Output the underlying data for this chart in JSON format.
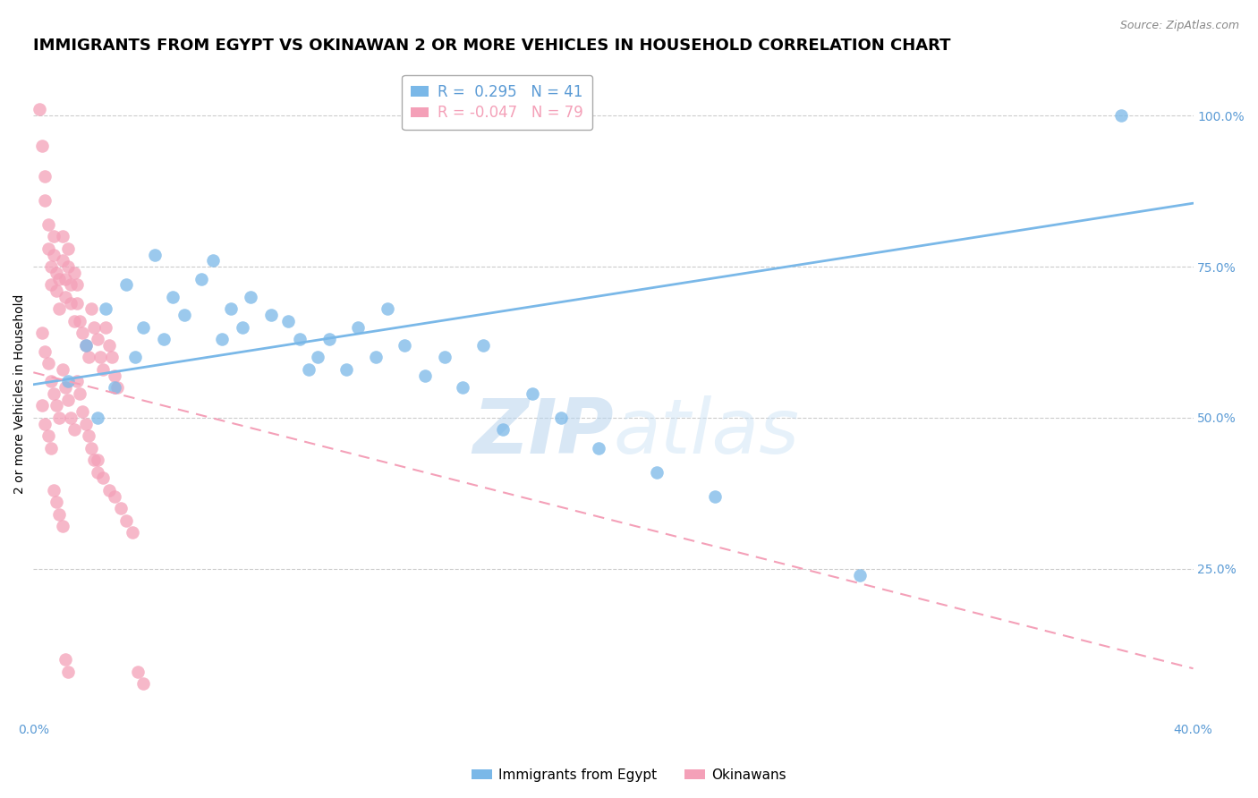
{
  "title": "IMMIGRANTS FROM EGYPT VS OKINAWAN 2 OR MORE VEHICLES IN HOUSEHOLD CORRELATION CHART",
  "source": "Source: ZipAtlas.com",
  "ylabel": "2 or more Vehicles in Household",
  "x_min": 0.0,
  "x_max": 0.4,
  "y_min": 0.0,
  "y_max": 1.08,
  "y_ticks": [
    0.25,
    0.5,
    0.75,
    1.0
  ],
  "y_tick_labels": [
    "25.0%",
    "50.0%",
    "75.0%",
    "100.0%"
  ],
  "legend_label1": "Immigrants from Egypt",
  "legend_label2": "Okinawans",
  "color_blue": "#7ab8e8",
  "color_pink": "#f4a0b8",
  "watermark_zip": "ZIP",
  "watermark_atlas": "atlas",
  "blue_scatter_x": [
    0.012,
    0.018,
    0.022,
    0.025,
    0.028,
    0.032,
    0.035,
    0.038,
    0.042,
    0.045,
    0.048,
    0.052,
    0.058,
    0.062,
    0.065,
    0.068,
    0.072,
    0.075,
    0.082,
    0.088,
    0.092,
    0.095,
    0.098,
    0.102,
    0.108,
    0.112,
    0.118,
    0.122,
    0.128,
    0.135,
    0.142,
    0.148,
    0.155,
    0.162,
    0.172,
    0.182,
    0.195,
    0.215,
    0.235,
    0.285,
    0.375
  ],
  "blue_scatter_y": [
    0.56,
    0.62,
    0.5,
    0.68,
    0.55,
    0.72,
    0.6,
    0.65,
    0.77,
    0.63,
    0.7,
    0.67,
    0.73,
    0.76,
    0.63,
    0.68,
    0.65,
    0.7,
    0.67,
    0.66,
    0.63,
    0.58,
    0.6,
    0.63,
    0.58,
    0.65,
    0.6,
    0.68,
    0.62,
    0.57,
    0.6,
    0.55,
    0.62,
    0.48,
    0.54,
    0.5,
    0.45,
    0.41,
    0.37,
    0.24,
    1.0
  ],
  "pink_scatter_x": [
    0.002,
    0.003,
    0.004,
    0.004,
    0.005,
    0.005,
    0.006,
    0.006,
    0.007,
    0.007,
    0.008,
    0.008,
    0.009,
    0.009,
    0.01,
    0.01,
    0.011,
    0.011,
    0.012,
    0.012,
    0.013,
    0.013,
    0.014,
    0.014,
    0.015,
    0.015,
    0.016,
    0.017,
    0.018,
    0.019,
    0.02,
    0.021,
    0.022,
    0.023,
    0.024,
    0.025,
    0.026,
    0.027,
    0.028,
    0.029,
    0.003,
    0.004,
    0.005,
    0.006,
    0.007,
    0.008,
    0.009,
    0.01,
    0.011,
    0.012,
    0.013,
    0.014,
    0.015,
    0.016,
    0.017,
    0.018,
    0.019,
    0.02,
    0.021,
    0.022,
    0.003,
    0.004,
    0.005,
    0.006,
    0.007,
    0.008,
    0.009,
    0.01,
    0.011,
    0.012,
    0.022,
    0.024,
    0.026,
    0.028,
    0.03,
    0.032,
    0.034,
    0.036,
    0.038
  ],
  "pink_scatter_y": [
    1.01,
    0.95,
    0.9,
    0.86,
    0.82,
    0.78,
    0.75,
    0.72,
    0.8,
    0.77,
    0.74,
    0.71,
    0.68,
    0.73,
    0.8,
    0.76,
    0.73,
    0.7,
    0.78,
    0.75,
    0.72,
    0.69,
    0.66,
    0.74,
    0.72,
    0.69,
    0.66,
    0.64,
    0.62,
    0.6,
    0.68,
    0.65,
    0.63,
    0.6,
    0.58,
    0.65,
    0.62,
    0.6,
    0.57,
    0.55,
    0.64,
    0.61,
    0.59,
    0.56,
    0.54,
    0.52,
    0.5,
    0.58,
    0.55,
    0.53,
    0.5,
    0.48,
    0.56,
    0.54,
    0.51,
    0.49,
    0.47,
    0.45,
    0.43,
    0.41,
    0.52,
    0.49,
    0.47,
    0.45,
    0.38,
    0.36,
    0.34,
    0.32,
    0.1,
    0.08,
    0.43,
    0.4,
    0.38,
    0.37,
    0.35,
    0.33,
    0.31,
    0.08,
    0.06
  ],
  "blue_line_x": [
    0.0,
    0.4
  ],
  "blue_line_y": [
    0.555,
    0.855
  ],
  "pink_line_x": [
    0.0,
    0.4
  ],
  "pink_line_y": [
    0.575,
    0.085
  ],
  "grid_color": "#cccccc",
  "title_fontsize": 13,
  "axis_label_fontsize": 10,
  "tick_fontsize": 10,
  "tick_color": "#5b9bd5",
  "legend_r1": "R =  0.295",
  "legend_n1": "N = 41",
  "legend_r2": "R = -0.047",
  "legend_n2": "N = 79"
}
